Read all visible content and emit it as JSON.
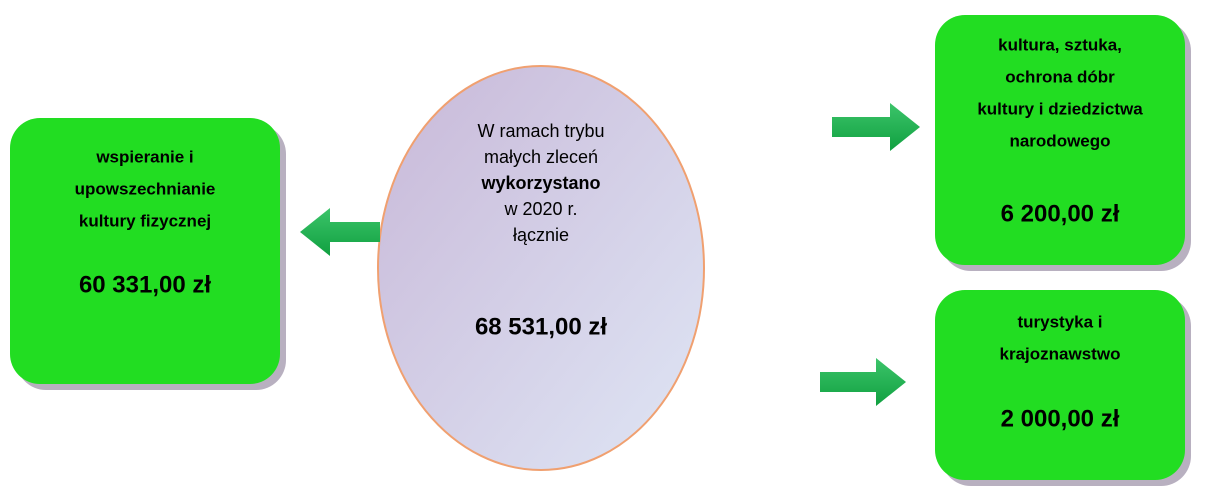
{
  "center": {
    "lines": [
      "W ramach trybu",
      "małych zleceń",
      "wykorzystano",
      "w 2020 r.",
      "łącznie"
    ],
    "amount": "68 531,00 zł"
  },
  "boxes": [
    {
      "label": [
        "wspieranie i",
        "upowszechnianie",
        "kultury fizycznej"
      ],
      "amount": "60 331,00 zł"
    },
    {
      "label": [
        "kultura, sztuka,",
        "ochrona dóbr",
        "kultury i dziedzictwa",
        "narodowego"
      ],
      "amount": "6 200,00 zł"
    },
    {
      "label": [
        "turystyka i",
        "krajoznawstwo"
      ],
      "amount": "2 000,00 zł"
    }
  ]
}
